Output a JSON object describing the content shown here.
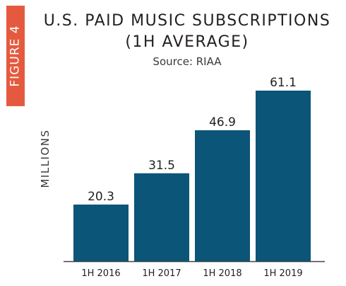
{
  "figure_tab": "FIGURE 4",
  "title_line1": "U.S. PAID MUSIC SUBSCRIPTIONS",
  "title_line2": "(1H AVERAGE)",
  "source": "Source: RIAA",
  "colors": {
    "bar": "#0b5578",
    "tab": "#e55a3f",
    "axis": "#444444"
  },
  "chart_data": {
    "type": "bar",
    "title": "U.S. PAID MUSIC SUBSCRIPTIONS (1H AVERAGE)",
    "subtitle": "Source: RIAA",
    "xlabel": "",
    "ylabel": "MILLIONS",
    "categories": [
      "1H 2016",
      "1H 2017",
      "1H 2018",
      "1H 2019"
    ],
    "values": [
      20.3,
      31.5,
      46.9,
      61.1
    ],
    "value_labels": [
      "20.3",
      "31.5",
      "46.9",
      "61.1"
    ],
    "ylim": [
      0,
      61.1
    ],
    "grid": false,
    "legend": "none"
  }
}
